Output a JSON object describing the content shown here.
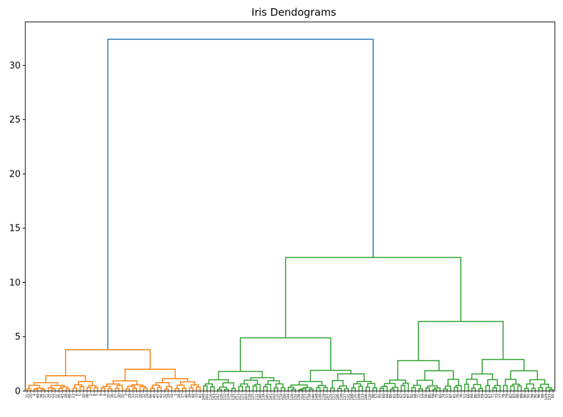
{
  "chart_data": {
    "type": "dendrogram",
    "title": "Iris Dendograms",
    "xlabel": "",
    "ylabel": "",
    "ylim": [
      0,
      34
    ],
    "yticks": [
      0,
      5,
      10,
      15,
      20,
      25,
      30
    ],
    "grid": false,
    "legend": "none",
    "leaf_count": 150,
    "colors": {
      "above_threshold": "#1f77b4",
      "cluster_1": "#ff7f0e",
      "cluster_2": "#2ca02c"
    },
    "top_merges": [
      {
        "height": 32.4,
        "from": [
          "cluster_1",
          "cluster_2"
        ],
        "color": "#1f77b4"
      },
      {
        "height": 12.3,
        "from": [
          "cluster_2a",
          "cluster_2b"
        ],
        "color": "#2ca02c"
      },
      {
        "height": 6.4,
        "from": [
          "cluster_2b_1",
          "cluster_2b_2"
        ],
        "color": "#2ca02c"
      },
      {
        "height": 4.9,
        "from": [
          "cluster_2a_1",
          "cluster_2a_2"
        ],
        "color": "#2ca02c"
      },
      {
        "height": 3.8,
        "from": [
          "cluster_1a",
          "cluster_1b"
        ],
        "color": "#ff7f0e"
      },
      {
        "height": 2.9,
        "from": [
          "cluster_2b_2a",
          "cluster_2b_2b"
        ],
        "color": "#2ca02c"
      },
      {
        "height": 2.8,
        "from": [
          "cluster_2b_1a",
          "cluster_2b_1b"
        ],
        "color": "#2ca02c"
      },
      {
        "height": 2.0,
        "from": [
          "cluster_1b_1",
          "cluster_1b_2"
        ],
        "color": "#ff7f0e"
      },
      {
        "height": 1.9,
        "from": [
          "cluster_2a_2a",
          "cluster_2a_2b"
        ],
        "color": "#2ca02c"
      },
      {
        "height": 1.8,
        "from": [
          "cluster_2a_1a",
          "cluster_2a_1b"
        ],
        "color": "#2ca02c"
      },
      {
        "height": 1.4,
        "from": [
          "cluster_1a_1",
          "cluster_1a_2"
        ],
        "color": "#ff7f0e"
      }
    ],
    "leaf_labels": [
      "31",
      "20",
      "4",
      "49",
      "36",
      "37",
      "34",
      "21",
      "22",
      "35",
      "43",
      "28",
      "48",
      "23",
      "6",
      "5",
      "10",
      "38",
      "2",
      "8",
      "7",
      "9",
      "0",
      "15",
      "16",
      "27",
      "30",
      "25",
      "3",
      "29",
      "13",
      "11",
      "18",
      "12",
      "24",
      "46",
      "45",
      "47",
      "42",
      "32",
      "19",
      "14",
      "1",
      "26",
      "17",
      "40",
      "39",
      "44",
      "33",
      "41",
      "149",
      "101",
      "120",
      "143",
      "142",
      "126",
      "112",
      "114",
      "110",
      "147",
      "123",
      "121",
      "103",
      "116",
      "137",
      "111",
      "140",
      "139",
      "145",
      "141",
      "102",
      "115",
      "124",
      "100",
      "144",
      "128",
      "132",
      "136",
      "104",
      "127",
      "138",
      "146",
      "148",
      "130",
      "119",
      "107",
      "125",
      "122",
      "105",
      "118",
      "117",
      "131",
      "108",
      "135",
      "109",
      "113",
      "106",
      "134",
      "98",
      "57",
      "93",
      "60",
      "64",
      "80",
      "81",
      "69",
      "62",
      "53",
      "87",
      "92",
      "68",
      "72",
      "54",
      "56",
      "85",
      "58",
      "75",
      "65",
      "74",
      "51",
      "97",
      "61",
      "70",
      "76",
      "52",
      "66",
      "84",
      "86",
      "50",
      "59",
      "63",
      "67",
      "71",
      "73",
      "77",
      "78",
      "79",
      "82",
      "83",
      "88",
      "89",
      "90",
      "91",
      "94",
      "95",
      "96",
      "99",
      "129",
      "133",
      "55"
    ]
  }
}
